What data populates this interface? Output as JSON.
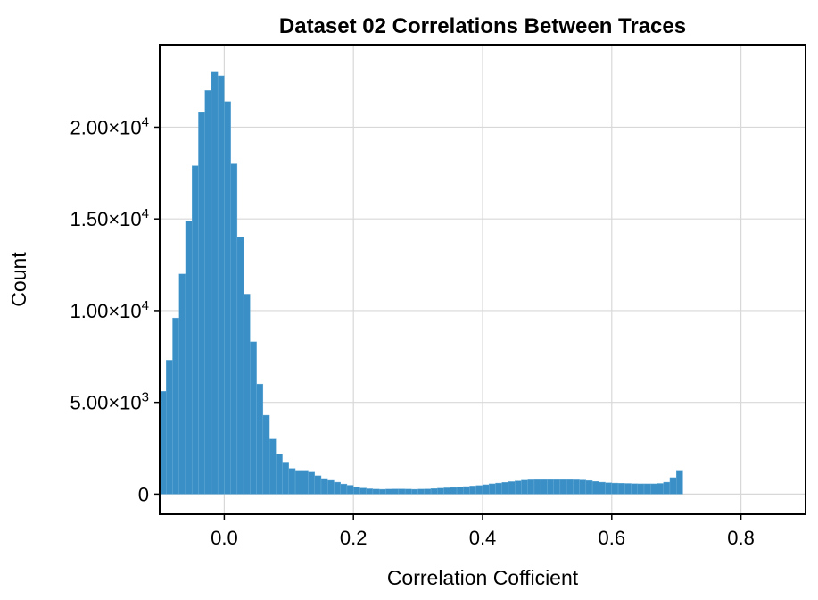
{
  "chart_data": {
    "type": "bar",
    "title": "Dataset 02 Correlations Between Traces",
    "xlabel": "Correlation Cofficient",
    "ylabel": "Count",
    "xlim": [
      -0.1,
      0.9
    ],
    "ylim": [
      -1100,
      24500
    ],
    "grid": true,
    "x_ticks": [
      {
        "value": 0.0,
        "label": "0.0"
      },
      {
        "value": 0.2,
        "label": "0.2"
      },
      {
        "value": 0.4,
        "label": "0.4"
      },
      {
        "value": 0.6,
        "label": "0.6"
      },
      {
        "value": 0.8,
        "label": "0.8"
      }
    ],
    "y_ticks": [
      {
        "value": 0,
        "mantissa": "0",
        "exponent": ""
      },
      {
        "value": 5000,
        "mantissa": "5.00×10",
        "exponent": "3"
      },
      {
        "value": 10000,
        "mantissa": "1.00×10",
        "exponent": "4"
      },
      {
        "value": 15000,
        "mantissa": "1.50×10",
        "exponent": "4"
      },
      {
        "value": 20000,
        "mantissa": "2.00×10",
        "exponent": "4"
      }
    ],
    "bin_start": -0.1,
    "bin_width": 0.01,
    "values": [
      5600,
      7300,
      9600,
      12000,
      14900,
      17900,
      20800,
      22000,
      23000,
      22800,
      21400,
      18000,
      14000,
      10900,
      8300,
      6000,
      4300,
      3000,
      2200,
      1700,
      1400,
      1300,
      1300,
      1200,
      1000,
      850,
      750,
      650,
      550,
      480,
      400,
      330,
      290,
      270,
      260,
      270,
      280,
      280,
      270,
      260,
      270,
      280,
      300,
      320,
      340,
      360,
      380,
      410,
      440,
      470,
      510,
      560,
      600,
      640,
      680,
      720,
      760,
      780,
      790,
      790,
      790,
      790,
      790,
      790,
      780,
      770,
      740,
      690,
      650,
      620,
      600,
      590,
      580,
      570,
      560,
      560,
      560,
      580,
      650,
      900,
      1300
    ]
  }
}
